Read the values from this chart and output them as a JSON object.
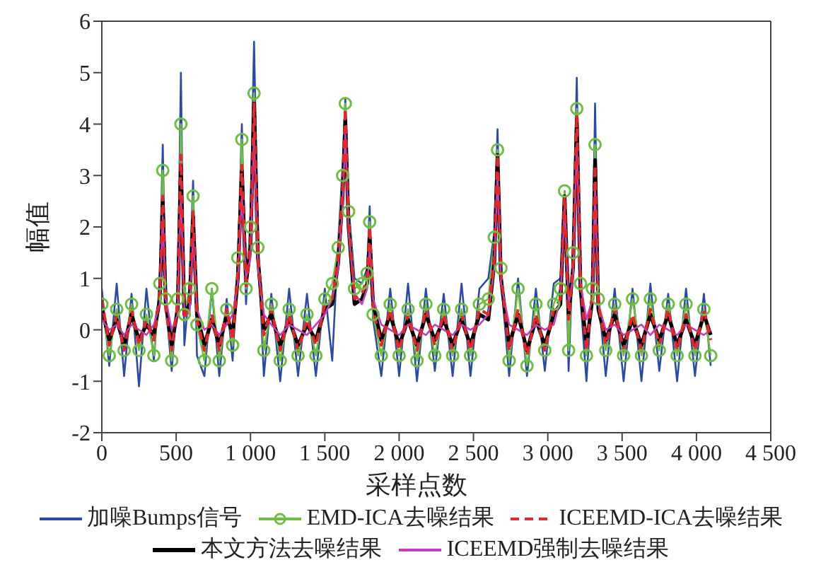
{
  "chart_data": {
    "type": "line",
    "xlabel": "采样点数",
    "ylabel": "幅值",
    "xlim": [
      0,
      4500
    ],
    "xticks": [
      0,
      {
        "value": 500,
        "label": "500"
      },
      {
        "value": 1000,
        "label": "1 000"
      },
      {
        "value": 1500,
        "label": "1 500"
      },
      {
        "value": 2000,
        "label": "2 000"
      },
      {
        "value": 2500,
        "label": "2 500"
      },
      {
        "value": 3000,
        "label": "3 000"
      },
      {
        "value": 3500,
        "label": "3 500"
      },
      {
        "value": 4000,
        "label": "4 000"
      },
      {
        "value": 4500,
        "label": "4 500"
      }
    ],
    "ylim": [
      -2,
      6
    ],
    "yticks": [
      -2,
      -1,
      0,
      1,
      2,
      3,
      4,
      5,
      6
    ],
    "grid": false,
    "legend": "bottom",
    "x": [
      0,
      50,
      100,
      150,
      200,
      250,
      300,
      350,
      390,
      410,
      430,
      470,
      510,
      532,
      555,
      590,
      614,
      640,
      690,
      740,
      790,
      840,
      880,
      915,
      942,
      970,
      1000,
      1024,
      1050,
      1090,
      1140,
      1200,
      1260,
      1320,
      1380,
      1440,
      1500,
      1550,
      1590,
      1620,
      1638,
      1660,
      1700,
      1750,
      1785,
      1802,
      1825,
      1880,
      1940,
      2000,
      2060,
      2120,
      2180,
      2240,
      2300,
      2360,
      2420,
      2480,
      2540,
      2600,
      2640,
      2662,
      2685,
      2740,
      2800,
      2860,
      2920,
      2980,
      3040,
      3085,
      3113,
      3140,
      3170,
      3195,
      3220,
      3260,
      3300,
      3318,
      3340,
      3390,
      3450,
      3510,
      3570,
      3630,
      3690,
      3750,
      3810,
      3870,
      3930,
      3990,
      4050,
      4096
    ],
    "series": [
      {
        "name": "加噪Bumps信号",
        "color": "#2b4aa8",
        "line_style": "solid",
        "marker": "none",
        "values": [
          0.8,
          -0.7,
          0.9,
          -0.9,
          0.7,
          -1.1,
          0.8,
          -0.6,
          1.0,
          3.6,
          0.5,
          -0.8,
          0.7,
          5.0,
          -0.3,
          0.9,
          2.9,
          -0.5,
          -0.9,
          0.8,
          -0.9,
          0.6,
          -0.6,
          1.3,
          4.0,
          0.5,
          2.2,
          5.6,
          1.7,
          -0.9,
          0.7,
          -1.0,
          0.8,
          -0.9,
          0.7,
          -0.9,
          0.8,
          -0.6,
          1.7,
          3.2,
          4.5,
          2.4,
          1.0,
          0.9,
          1.2,
          2.4,
          0.2,
          -0.9,
          0.8,
          -0.9,
          0.9,
          -1.0,
          0.8,
          -0.8,
          0.7,
          -0.9,
          0.9,
          -0.9,
          0.8,
          1.0,
          1.9,
          3.9,
          1.0,
          -0.9,
          1.0,
          -0.9,
          0.8,
          -0.8,
          0.9,
          1.0,
          2.7,
          -0.8,
          1.5,
          4.9,
          0.6,
          -1.0,
          0.9,
          4.4,
          0.7,
          -0.9,
          0.8,
          -1.0,
          0.8,
          -1.0,
          0.9,
          -0.8,
          0.7,
          -1.0,
          0.8,
          -0.9,
          0.7,
          -0.7
        ]
      },
      {
        "name": "EMD-ICA去噪结果",
        "color": "#6cbf3f",
        "line_style": "solid",
        "marker": "circle",
        "values": [
          0.5,
          -0.5,
          0.4,
          -0.4,
          0.5,
          -0.4,
          0.3,
          -0.5,
          0.9,
          3.1,
          0.6,
          -0.6,
          0.6,
          4.0,
          0.3,
          0.8,
          2.6,
          0.1,
          -0.6,
          0.8,
          -0.6,
          0.4,
          -0.3,
          1.4,
          3.7,
          0.8,
          2.0,
          4.6,
          1.6,
          -0.4,
          0.5,
          -0.6,
          0.4,
          -0.5,
          0.3,
          -0.5,
          0.6,
          0.9,
          1.6,
          3.0,
          4.4,
          2.3,
          0.8,
          0.9,
          1.1,
          2.1,
          0.3,
          -0.5,
          0.5,
          -0.5,
          0.4,
          -0.6,
          0.5,
          -0.5,
          0.4,
          -0.5,
          0.4,
          -0.5,
          0.5,
          0.6,
          1.8,
          3.5,
          1.2,
          -0.6,
          0.8,
          -0.7,
          0.5,
          -0.4,
          0.5,
          0.8,
          2.7,
          -0.4,
          1.5,
          4.3,
          0.9,
          -0.5,
          0.8,
          3.6,
          0.6,
          -0.4,
          0.5,
          -0.5,
          0.6,
          -0.5,
          0.6,
          -0.4,
          0.5,
          -0.5,
          0.5,
          -0.5,
          0.4,
          -0.5
        ]
      },
      {
        "name": "ICEEMD-ICA去噪结果",
        "color": "#e8262a",
        "line_style": "dashed",
        "marker": "none",
        "values": [
          0.6,
          -0.3,
          0.3,
          -0.4,
          0.4,
          -0.3,
          0.2,
          -0.2,
          0.7,
          2.6,
          0.4,
          -0.4,
          0.5,
          3.4,
          0.2,
          0.6,
          2.3,
          0.2,
          -0.4,
          0.3,
          -0.4,
          0.4,
          -0.2,
          1.1,
          3.2,
          0.8,
          1.7,
          4.4,
          1.5,
          -0.1,
          0.4,
          -0.4,
          0.3,
          -0.4,
          0.2,
          -0.3,
          0.5,
          0.6,
          1.4,
          2.7,
          4.3,
          2.1,
          0.6,
          0.7,
          1.0,
          2.0,
          0.4,
          -0.3,
          0.4,
          -0.4,
          0.3,
          -0.4,
          0.4,
          -0.3,
          0.3,
          -0.4,
          0.3,
          -0.4,
          0.4,
          0.3,
          1.4,
          3.4,
          1.1,
          -0.4,
          0.4,
          -0.5,
          0.3,
          -0.4,
          0.4,
          0.6,
          2.6,
          0.2,
          1.3,
          4.2,
          0.9,
          -0.4,
          0.7,
          3.2,
          0.5,
          -0.3,
          0.4,
          -0.4,
          0.3,
          -0.4,
          0.4,
          -0.3,
          0.4,
          -0.4,
          0.3,
          -0.4,
          0.4,
          -0.2
        ]
      },
      {
        "name": "本文方法去噪结果",
        "color": "#000000",
        "line_style": "solid",
        "marker": "none",
        "values": [
          0.4,
          -0.2,
          0.2,
          -0.3,
          0.3,
          -0.2,
          0.1,
          -0.1,
          0.6,
          2.5,
          0.5,
          -0.3,
          0.4,
          3.2,
          0.3,
          0.5,
          2.2,
          0.3,
          -0.3,
          0.2,
          -0.3,
          0.3,
          -0.1,
          1.0,
          3.1,
          0.9,
          1.6,
          4.4,
          1.4,
          0.0,
          0.3,
          -0.3,
          0.2,
          -0.3,
          0.1,
          -0.2,
          0.4,
          0.5,
          1.3,
          2.6,
          4.1,
          2.0,
          0.5,
          0.6,
          0.9,
          1.8,
          0.5,
          -0.2,
          0.3,
          -0.3,
          0.2,
          -0.3,
          0.3,
          -0.2,
          0.2,
          -0.3,
          0.2,
          -0.3,
          0.3,
          0.2,
          1.3,
          3.4,
          1.0,
          -0.3,
          0.3,
          -0.4,
          0.2,
          -0.3,
          0.3,
          0.5,
          2.6,
          0.3,
          1.2,
          4.1,
          0.8,
          -0.3,
          0.6,
          3.3,
          0.4,
          -0.2,
          0.3,
          -0.3,
          0.2,
          -0.3,
          0.3,
          -0.2,
          0.3,
          -0.3,
          0.2,
          -0.3,
          0.3,
          -0.1
        ]
      },
      {
        "name": "ICEEMD强制去噪结果",
        "color": "#c040c0",
        "line_style": "solid",
        "marker": "none",
        "values": [
          0.2,
          0.0,
          0.1,
          -0.1,
          0.1,
          0.0,
          -0.1,
          0.1,
          0.5,
          2.2,
          0.6,
          0.0,
          0.3,
          2.6,
          0.4,
          0.3,
          1.8,
          0.4,
          0.0,
          0.1,
          -0.1,
          0.1,
          0.3,
          0.9,
          2.6,
          1.0,
          1.4,
          3.8,
          1.2,
          0.3,
          0.1,
          -0.1,
          0.1,
          0.0,
          -0.1,
          0.1,
          0.3,
          0.6,
          1.2,
          2.4,
          3.8,
          1.9,
          0.7,
          0.5,
          0.8,
          1.6,
          0.6,
          0.1,
          0.0,
          -0.1,
          0.1,
          0.0,
          -0.1,
          0.1,
          0.0,
          -0.1,
          0.1,
          0.0,
          0.1,
          0.3,
          1.2,
          3.0,
          0.9,
          0.1,
          0.0,
          -0.1,
          0.1,
          0.0,
          0.1,
          0.6,
          2.4,
          0.5,
          1.0,
          3.6,
          0.9,
          0.2,
          0.6,
          2.7,
          0.5,
          0.0,
          0.1,
          -0.1,
          0.0,
          0.1,
          -0.1,
          0.1,
          0.0,
          -0.1,
          0.1,
          0.0,
          -0.1,
          0.0
        ]
      }
    ]
  }
}
